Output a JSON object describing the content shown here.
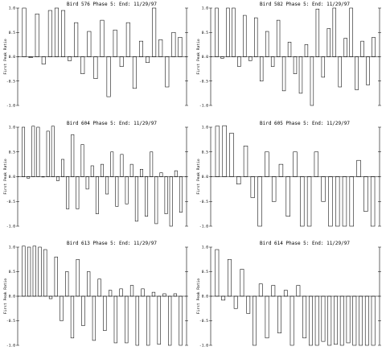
{
  "chart_data": [
    {
      "type": "bar",
      "title": "Bird 576 Phase 5:  End: 11/29/97",
      "xlabel": "",
      "ylabel": "First Peak Ratio",
      "ylim": [
        -1.0,
        1.0
      ],
      "yticks": [
        "1.0",
        "0.5",
        "0.0",
        "-0.5",
        "-1.0"
      ],
      "grid": false,
      "values": [
        1.0,
        -0.02,
        0.88,
        -0.15,
        0.95,
        1.0,
        0.95,
        -0.08,
        0.7,
        -0.35,
        0.52,
        -0.45,
        0.75,
        -0.82,
        0.55,
        -0.2,
        0.7,
        -0.65,
        0.32,
        -0.12,
        1.0,
        0.35,
        -0.62,
        0.5,
        0.4
      ]
    },
    {
      "type": "bar",
      "title": "Bird 582 Phase 5:  End: 11/29/97",
      "xlabel": "",
      "ylabel": "First Peak Ratio",
      "ylim": [
        -1.0,
        1.0
      ],
      "yticks": [
        "1.0",
        "0.5",
        "0.0",
        "-0.5",
        "-1.0"
      ],
      "grid": false,
      "values": [
        1.0,
        -0.03,
        1.0,
        1.0,
        -0.2,
        0.85,
        -0.08,
        0.8,
        -0.5,
        0.52,
        -0.2,
        0.75,
        -0.7,
        0.3,
        -0.35,
        -0.75,
        0.25,
        -1.0,
        0.98,
        -0.42,
        0.58,
        1.0,
        -0.62,
        0.38,
        1.0,
        -0.68,
        0.32,
        -0.58,
        0.4
      ]
    },
    {
      "type": "bar",
      "title": "Bird 604 Phase 5:  End: 11/29/97",
      "xlabel": "",
      "ylabel": "First Peak Ratio",
      "ylim": [
        -1.0,
        1.0
      ],
      "yticks": [
        "1.0",
        "0.5",
        "0.0",
        "-0.5",
        "-1.0"
      ],
      "grid": false,
      "values": [
        1.0,
        -0.03,
        1.02,
        1.0,
        0.0,
        0.92,
        1.02,
        -0.08,
        0.35,
        -0.65,
        0.85,
        -0.65,
        0.65,
        -0.25,
        0.22,
        -0.75,
        0.25,
        -0.35,
        0.5,
        -0.6,
        0.45,
        -0.55,
        0.25,
        -0.9,
        0.15,
        -0.8,
        0.5,
        -0.95,
        0.08,
        -0.75,
        -1.0,
        0.12,
        -0.72
      ]
    },
    {
      "type": "bar",
      "title": "Bird 605 Phase 5:  End: 11/29/97",
      "xlabel": "",
      "ylabel": "First Peak Ratio",
      "ylim": [
        -1.0,
        1.0
      ],
      "yticks": [
        "1.0",
        "0.5",
        "0.0",
        "-0.5",
        "-1.0"
      ],
      "grid": false,
      "values": [
        1.02,
        1.03,
        0.88,
        -0.15,
        0.62,
        -0.42,
        -1.0,
        0.5,
        -0.5,
        0.25,
        -0.8,
        0.5,
        -1.0,
        -1.0,
        0.5,
        -0.5,
        -1.0,
        -1.0,
        -1.0,
        -1.0,
        0.33,
        -0.7,
        -1.0
      ]
    },
    {
      "type": "bar",
      "title": "Bird 613 Phase 5:  End: 11/29/97",
      "xlabel": "",
      "ylabel": "First Peak Ratio",
      "ylim": [
        -1.0,
        1.0
      ],
      "yticks": [
        "1.0",
        "0.5",
        "0.0",
        "-0.5",
        "-1.0"
      ],
      "grid": false,
      "values": [
        1.02,
        1.0,
        1.02,
        1.0,
        0.95,
        -0.05,
        0.8,
        -0.5,
        0.5,
        -0.85,
        0.75,
        -0.6,
        0.5,
        -0.9,
        0.35,
        -0.7,
        0.12,
        -0.95,
        0.15,
        -0.95,
        0.22,
        -1.0,
        0.15,
        -1.0,
        0.08,
        -0.98,
        0.05,
        -1.0,
        0.05,
        -1.0
      ]
    },
    {
      "type": "bar",
      "title": "Bird 614 Phase 5:  End: 11/29/97",
      "xlabel": "",
      "ylabel": "First Peak Ratio",
      "ylim": [
        -1.0,
        1.0
      ],
      "yticks": [
        "1.0",
        "0.5",
        "0.0",
        "-0.5",
        "-1.0"
      ],
      "grid": false,
      "values": [
        0.95,
        -0.08,
        0.75,
        -0.25,
        0.55,
        -0.35,
        -1.0,
        0.25,
        -0.85,
        0.22,
        -0.75,
        0.12,
        -1.0,
        0.22,
        -0.85,
        -1.0,
        -1.0,
        -0.92,
        -1.0,
        -0.98,
        -1.0,
        -0.95,
        -1.0,
        -1.0,
        -1.0,
        -1.0
      ]
    }
  ]
}
